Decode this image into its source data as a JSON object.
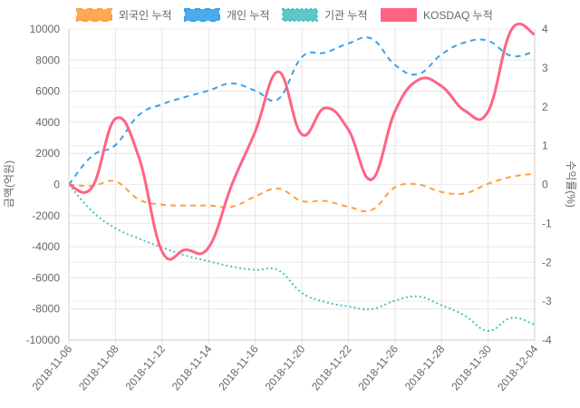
{
  "chart_data": {
    "type": "line",
    "title": "",
    "x": [
      "2018-11-06",
      "2018-11-07",
      "2018-11-08",
      "2018-11-09",
      "2018-11-12",
      "2018-11-13",
      "2018-11-14",
      "2018-11-15",
      "2018-11-16",
      "2018-11-19",
      "2018-11-20",
      "2018-11-21",
      "2018-11-22",
      "2018-11-23",
      "2018-11-26",
      "2018-11-27",
      "2018-11-28",
      "2018-11-29",
      "2018-11-30",
      "2018-12-03",
      "2018-12-04"
    ],
    "x_tick_labels": [
      "2018-11-06",
      "2018-11-08",
      "2018-11-12",
      "2018-11-14",
      "2018-11-16",
      "2018-11-20",
      "2018-11-22",
      "2018-11-26",
      "2018-11-28",
      "2018-11-30",
      "2018-12-04"
    ],
    "ylabel_left": "금액(억원)",
    "ylabel_right": "수익률(%)",
    "ylim_left": [
      -10000,
      10000
    ],
    "ylim_right": [
      -4,
      4
    ],
    "yticks_left": [
      "10000",
      "8000",
      "6000",
      "4000",
      "2000",
      "0",
      "-2000",
      "-4000",
      "-6000",
      "-8000",
      "-10000"
    ],
    "yticks_right": [
      "4",
      "3",
      "2",
      "1",
      "0",
      "-1",
      "-2",
      "-3",
      "-4"
    ],
    "grid": true,
    "legend_position": "top",
    "series": [
      {
        "name": "외국인 누적",
        "axis": "left",
        "color": "#ff9f40",
        "style": "dashed",
        "values": [
          0,
          -90,
          200,
          -960,
          -1290,
          -1350,
          -1350,
          -1430,
          -770,
          -260,
          -1060,
          -1060,
          -1430,
          -1640,
          -190,
          0,
          -480,
          -570,
          50,
          500,
          690
        ]
      },
      {
        "name": "개인 누적",
        "axis": "left",
        "color": "#36a2eb",
        "style": "dashed",
        "values": [
          0,
          1840,
          2540,
          4460,
          5160,
          5630,
          6040,
          6500,
          6040,
          5510,
          8190,
          8480,
          9070,
          9380,
          7690,
          7100,
          8370,
          9140,
          9240,
          8270,
          8560
        ]
      },
      {
        "name": "기관 누적",
        "axis": "left",
        "color": "#4bc0c0",
        "style": "dotted",
        "values": [
          0,
          -1720,
          -2810,
          -3470,
          -4050,
          -4560,
          -4930,
          -5280,
          -5490,
          -5510,
          -6970,
          -7550,
          -7840,
          -8020,
          -7470,
          -7200,
          -7770,
          -8430,
          -9420,
          -8580,
          -9010
        ]
      },
      {
        "name": "KOSDAQ 누적",
        "axis": "right",
        "color": "#ff6384",
        "style": "solid",
        "values": [
          0,
          -0.07,
          1.69,
          0.71,
          -1.72,
          -1.68,
          -1.62,
          0.0,
          1.36,
          2.9,
          1.29,
          1.97,
          1.41,
          0.13,
          1.88,
          2.69,
          2.53,
          1.9,
          1.88,
          3.98,
          3.86
        ]
      }
    ]
  }
}
